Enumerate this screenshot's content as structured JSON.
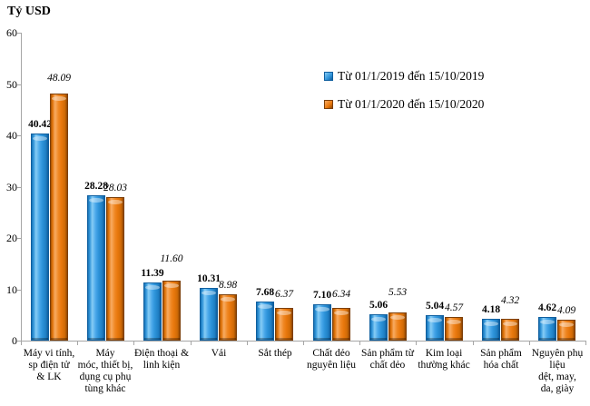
{
  "title": "Tỷ USD",
  "chart_data": {
    "type": "bar",
    "title": "Tỷ USD",
    "ylabel": "Tỷ USD",
    "xlabel": "",
    "ylim": [
      0,
      60
    ],
    "y_ticks": [
      0,
      10,
      20,
      30,
      40,
      50,
      60
    ],
    "grid": false,
    "legend_position": "inside-upper-right",
    "value_labels_shown": true,
    "categories": [
      "Máy vi tính,\nsp điện tử\n& LK",
      "Máy\nmóc, thiết bị,\ndụng cụ phụ\ntùng khác",
      "Điện thoại &\nlinh kiện",
      "Vải",
      "Sắt thép",
      "Chất dẻo\nnguyên liệu",
      "Sản phẩm từ\nchất dẻo",
      "Kim loại\nthường khác",
      "Sản phẩm\nhóa chất",
      "Nguyên phụ\nliệu\ndệt, may,\nda, giày"
    ],
    "series": [
      {
        "name": "Từ 01/1/2019 đến 15/10/2019",
        "color": "#2E94DA",
        "label_style": "bold",
        "values": [
          40.42,
          28.28,
          11.39,
          10.31,
          7.68,
          7.1,
          5.06,
          5.04,
          4.18,
          4.62
        ]
      },
      {
        "name": "Từ 01/1/2020 đến 15/10/2020",
        "color": "#E9780D",
        "label_style": "italic",
        "values": [
          48.09,
          28.03,
          11.6,
          8.98,
          6.37,
          6.34,
          5.53,
          4.57,
          4.32,
          4.09
        ]
      }
    ]
  }
}
